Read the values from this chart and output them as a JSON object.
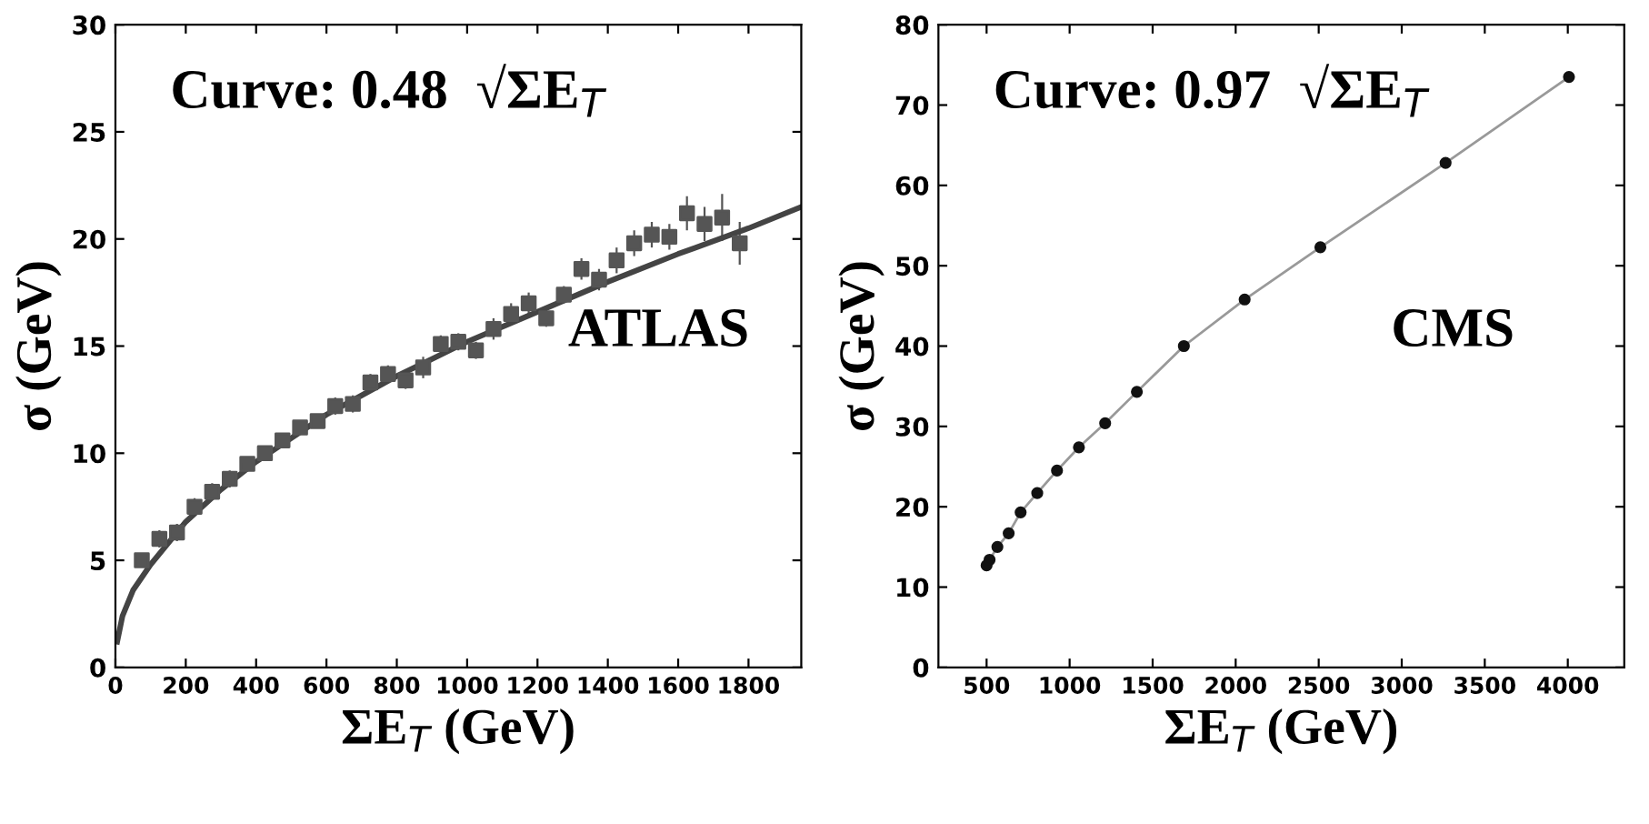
{
  "chart_data": [
    {
      "type": "scatter",
      "xlabel": "ΣE$_{T}$ (GeV)",
      "ylabel": "σ (GeV)",
      "annotations": [
        "Curve: 0.48  √ΣE$_{T}$",
        "ATLAS"
      ],
      "xlim": [
        0,
        1950
      ],
      "ylim": [
        0,
        30
      ],
      "xticks": [
        0,
        200,
        400,
        600,
        800,
        1000,
        1200,
        1400,
        1600,
        1800
      ],
      "yticks": [
        0,
        5,
        10,
        15,
        20,
        25,
        30
      ],
      "grid": false,
      "series": [
        {
          "color": "#555555",
          "marker": "square",
          "x": [
            75,
            125,
            175,
            225,
            275,
            325,
            375,
            425,
            475,
            525,
            575,
            625,
            675,
            725,
            775,
            825,
            875,
            925,
            975,
            1025,
            1075,
            1125,
            1175,
            1225,
            1275,
            1325,
            1375,
            1425,
            1475,
            1525,
            1575,
            1625,
            1675,
            1725,
            1775
          ],
          "values": [
            5.0,
            6.0,
            6.3,
            7.5,
            8.2,
            8.8,
            9.5,
            10.0,
            10.6,
            11.2,
            11.5,
            12.2,
            12.3,
            13.3,
            13.7,
            13.4,
            14.0,
            15.1,
            15.2,
            14.8,
            15.8,
            16.5,
            17.0,
            16.3,
            17.4,
            18.6,
            18.1,
            19.0,
            19.8,
            20.2,
            20.1,
            21.2,
            20.7,
            21.0,
            19.8
          ],
          "errors": [
            0.3,
            0.4,
            0.4,
            0.4,
            0.4,
            0.4,
            0.3,
            0.3,
            0.3,
            0.3,
            0.3,
            0.4,
            0.4,
            0.4,
            0.4,
            0.4,
            0.5,
            0.4,
            0.4,
            0.4,
            0.5,
            0.5,
            0.5,
            0.4,
            0.4,
            0.5,
            0.5,
            0.6,
            0.6,
            0.6,
            0.6,
            0.8,
            0.8,
            1.1,
            1.0
          ]
        },
        {
          "type": "line",
          "color": "#444444",
          "marker": "none",
          "x": [
            5,
            20,
            50,
            100,
            200,
            300,
            400,
            500,
            600,
            700,
            800,
            900,
            1000,
            1200,
            1400,
            1600,
            1800,
            1950
          ],
          "values": [
            1.2,
            2.4,
            3.6,
            4.8,
            6.8,
            8.3,
            9.6,
            10.7,
            11.8,
            12.7,
            13.6,
            14.4,
            15.2,
            16.6,
            18.0,
            19.3,
            20.5,
            21.5
          ]
        }
      ]
    },
    {
      "type": "scatter",
      "xlabel": "ΣE$_{T}$ (GeV)",
      "ylabel": "σ (GeV)",
      "annotations": [
        "Curve: 0.97  √ΣE$_{T}$",
        "CMS"
      ],
      "xlim": [
        210,
        4340
      ],
      "ylim": [
        0,
        80
      ],
      "xticks": [
        500,
        1000,
        1500,
        2000,
        2500,
        3000,
        3500,
        4000
      ],
      "yticks": [
        0,
        10,
        20,
        30,
        40,
        50,
        60,
        70,
        80
      ],
      "grid": false,
      "series": [
        {
          "type": "line",
          "color": "#999999",
          "marker": "none",
          "x": [
            500,
            518,
            565,
            633,
            705,
            805,
            924,
            1056,
            1214,
            1405,
            1688,
            2054,
            2510,
            3264,
            4007
          ],
          "values": [
            12.7,
            13.4,
            15.0,
            16.7,
            19.3,
            21.7,
            24.5,
            27.4,
            30.4,
            34.3,
            40.0,
            45.8,
            52.3,
            62.8,
            73.5
          ]
        },
        {
          "color": "#111111",
          "marker": "circle",
          "x": [
            500,
            518,
            565,
            633,
            705,
            805,
            924,
            1056,
            1214,
            1405,
            1688,
            2054,
            2510,
            3264,
            4007
          ],
          "values": [
            12.7,
            13.4,
            15.0,
            16.7,
            19.3,
            21.7,
            24.5,
            27.4,
            30.4,
            34.3,
            40.0,
            45.8,
            52.3,
            62.8,
            73.5
          ]
        }
      ]
    }
  ]
}
